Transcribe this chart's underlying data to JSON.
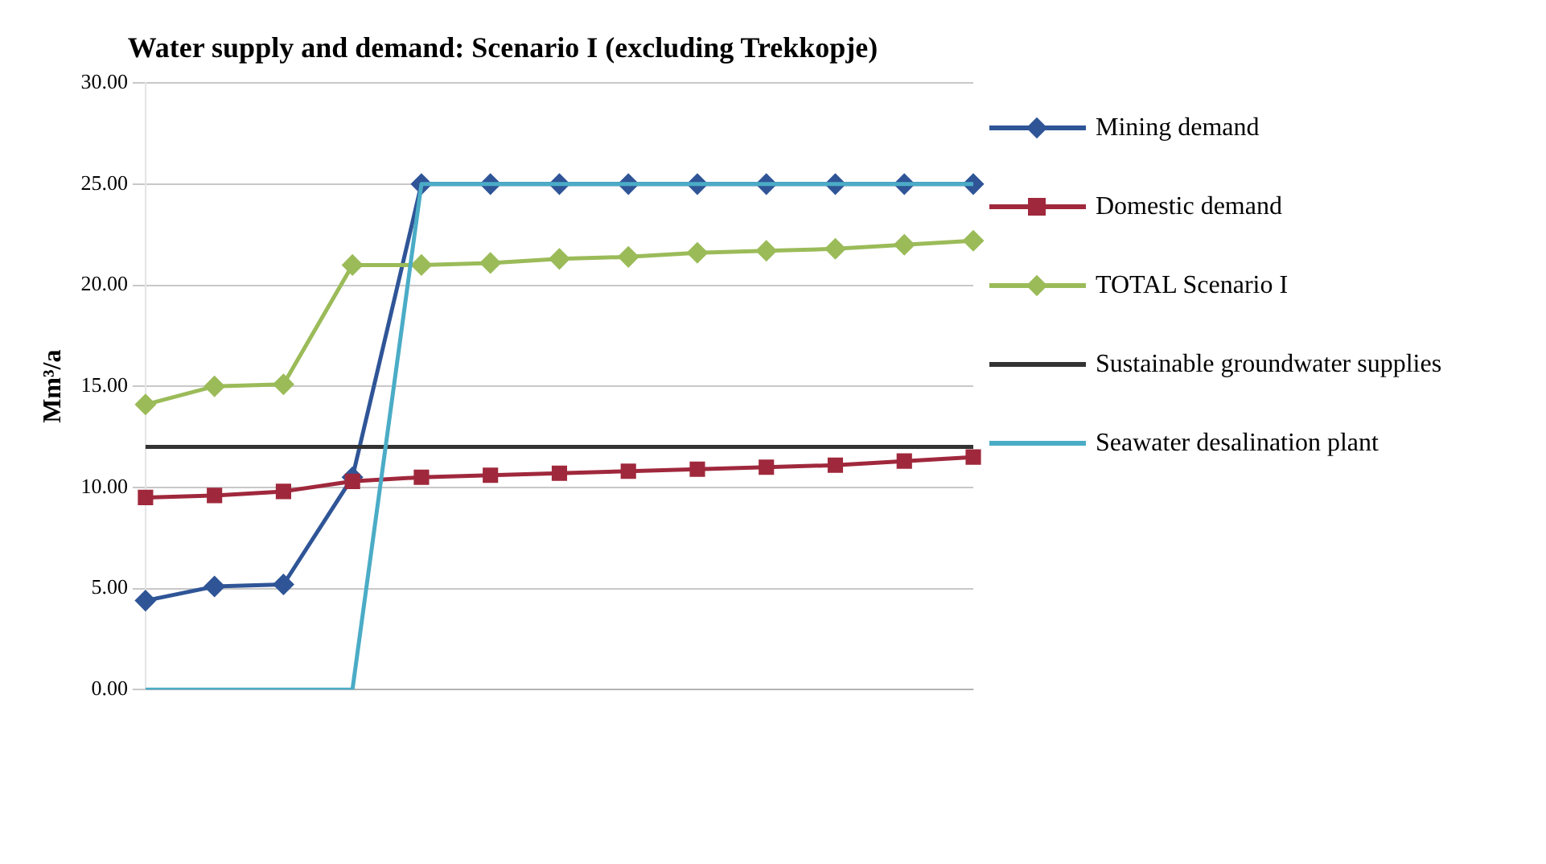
{
  "chart_data": {
    "type": "line",
    "title": "Water supply and demand: Scenario I (excluding Trekkopje)",
    "ylabel": "Mm³/a",
    "categories": [
      null,
      null,
      null,
      null,
      null,
      null,
      null,
      null,
      null,
      null,
      null,
      null,
      null
    ],
    "series": [
      {
        "name": "Mining demand",
        "color": "#2f5597",
        "marker": "diamond",
        "values": [
          4.4,
          5.1,
          5.2,
          10.5,
          25,
          25,
          25,
          25,
          25,
          25,
          25,
          25,
          25
        ]
      },
      {
        "name": "Domestic demand",
        "color": "#a0283c",
        "marker": "square",
        "values": [
          9.5,
          9.6,
          9.8,
          10.3,
          10.5,
          10.6,
          10.7,
          10.8,
          10.9,
          11.0,
          11.1,
          11.3,
          11.5
        ]
      },
      {
        "name": "TOTAL Scenario I",
        "color": "#9bbb59",
        "marker": "diamond",
        "values": [
          14.1,
          15.0,
          15.1,
          21.0,
          21.0,
          21.1,
          21.3,
          21.4,
          21.6,
          21.7,
          21.8,
          22.0,
          22.2
        ]
      },
      {
        "name": "Sustainable groundwater supplies",
        "color": "#333333",
        "marker": "none",
        "values": [
          12,
          12,
          12,
          12,
          12,
          12,
          12,
          12,
          12,
          12,
          12,
          12,
          12
        ]
      },
      {
        "name": "Seawater desalination plant",
        "color": "#4bacc6",
        "marker": "none",
        "values": [
          0,
          0,
          0,
          0,
          25,
          25,
          25,
          25,
          25,
          25,
          25,
          25,
          25
        ]
      }
    ],
    "ylim": [
      0,
      30
    ],
    "yticks": [
      {
        "value": 0,
        "label": "0.00"
      },
      {
        "value": 5,
        "label": "5.00"
      },
      {
        "value": 10,
        "label": "10.00"
      },
      {
        "value": 15,
        "label": "15.00"
      },
      {
        "value": 20,
        "label": "20.00"
      },
      {
        "value": 25,
        "label": "25.00"
      },
      {
        "value": 30,
        "label": "30.00"
      }
    ],
    "grid": "y",
    "legend": "right"
  }
}
